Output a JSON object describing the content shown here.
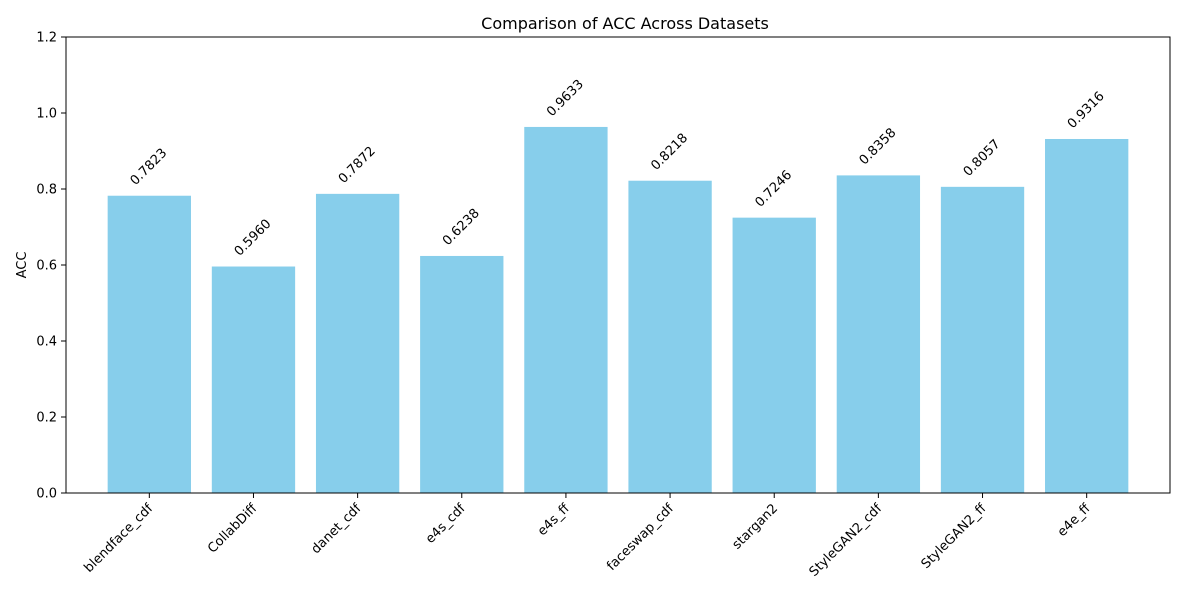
{
  "chart_data": {
    "type": "bar",
    "title": "Comparison of ACC Across Datasets",
    "xlabel": "",
    "ylabel": "ACC",
    "ylim": [
      0,
      1.2
    ],
    "yticks": [
      "0.0",
      "0.2",
      "0.4",
      "0.6",
      "0.8",
      "1.0",
      "1.2"
    ],
    "grid": false,
    "bar_color": "#87CEEB",
    "categories": [
      "blendface_cdf",
      "CollabDiff",
      "danet_cdf",
      "e4s_cdf",
      "e4s_ff",
      "faceswap_cdf",
      "stargan2",
      "StyleGAN2_cdf",
      "StyleGAN2_ff",
      "e4e_ff"
    ],
    "values": [
      0.7823,
      0.596,
      0.7872,
      0.6238,
      0.9633,
      0.8218,
      0.7246,
      0.8358,
      0.8057,
      0.9316
    ],
    "value_labels": [
      "0.7823",
      "0.5960",
      "0.7872",
      "0.6238",
      "0.9633",
      "0.8218",
      "0.7246",
      "0.8358",
      "0.8057",
      "0.9316"
    ]
  }
}
